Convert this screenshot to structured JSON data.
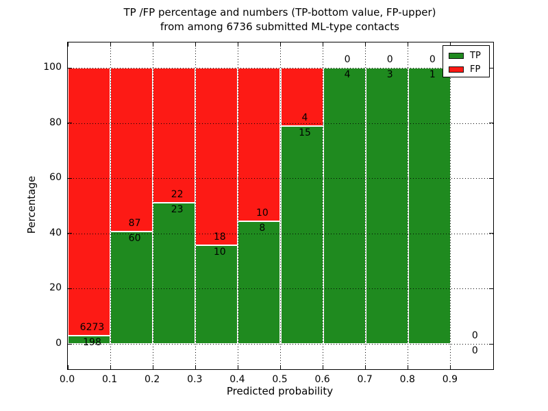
{
  "figure": {
    "title_line1": "TP /FP percentage and numbers (TP-bottom value, FP-upper)",
    "title_line2": "from among 6736 submitted ML-type contacts",
    "xlabel": "Predicted probability",
    "ylabel": "Percentage"
  },
  "legend": {
    "items": [
      {
        "label": "TP",
        "color": "#1f8a1f"
      },
      {
        "label": "FP",
        "color": "#fd1a15"
      }
    ],
    "position": "upper right"
  },
  "colors": {
    "tp": "#1f8a1f",
    "fp": "#fd1a15",
    "background": "#ffffff",
    "grid": "#000000",
    "bar_edge": "#ffffff",
    "text": "#000000"
  },
  "chart_data": {
    "type": "bar",
    "stacked": true,
    "unit": "percent_of_bin",
    "title": "TP /FP percentage and numbers (TP-bottom value, FP-upper) from among 6736 submitted ML-type contacts",
    "xlabel": "Predicted probability",
    "ylabel": "Percentage",
    "total_submitted_contacts": 6736,
    "bins": [
      "0.0-0.1",
      "0.1-0.2",
      "0.2-0.3",
      "0.3-0.4",
      "0.4-0.5",
      "0.5-0.6",
      "0.6-0.7",
      "0.7-0.8",
      "0.8-0.9",
      "0.9-1.0"
    ],
    "x_bin_edges": [
      0.0,
      0.1,
      0.2,
      0.3,
      0.4,
      0.5,
      0.6,
      0.7,
      0.8,
      0.9,
      1.0
    ],
    "x_tick_labels": [
      "0.0",
      "0.1",
      "0.2",
      "0.3",
      "0.4",
      "0.5",
      "0.6",
      "0.7",
      "0.8",
      "0.9"
    ],
    "y_ticks": [
      0,
      20,
      40,
      60,
      80,
      100
    ],
    "y_tick_labels": [
      "0",
      "20",
      "40",
      "60",
      "80",
      "100"
    ],
    "ylim_display": [
      -9.2,
      109.2
    ],
    "grid": true,
    "grid_style": "dotted",
    "legend_position": "upper right",
    "series": [
      {
        "name": "TP",
        "color": "#1f8a1f",
        "counts": [
          198,
          60,
          23,
          10,
          8,
          15,
          4,
          3,
          1,
          0
        ]
      },
      {
        "name": "FP",
        "color": "#fd1a15",
        "counts": [
          6273,
          87,
          22,
          18,
          10,
          4,
          0,
          0,
          0,
          0
        ]
      }
    ],
    "tp_percent_per_bin": [
      3.06,
      40.82,
      51.11,
      35.71,
      44.44,
      78.95,
      100.0,
      100.0,
      100.0,
      null
    ]
  }
}
